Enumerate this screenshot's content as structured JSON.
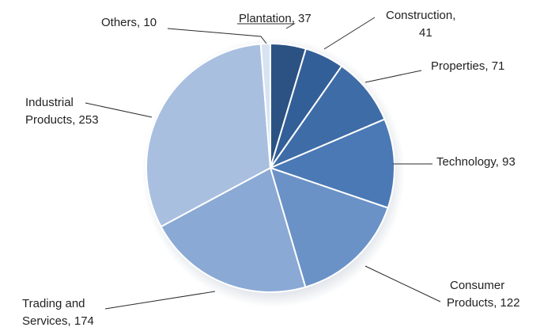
{
  "chart_data": {
    "type": "pie",
    "title": "",
    "categories": [
      "Plantation",
      "Construction",
      "Properties",
      "Technology",
      "Consumer Products",
      "Trading and Services",
      "Industrial Products",
      "Others"
    ],
    "values": [
      37,
      41,
      71,
      93,
      122,
      174,
      253,
      10
    ],
    "labels": [
      [
        "Plantation, 37"
      ],
      [
        "Construction,",
        "41"
      ],
      [
        "Properties, 71"
      ],
      [
        "Technology, 93"
      ],
      [
        "Consumer",
        "Products, 122"
      ],
      [
        "Trading and",
        "Services, 174"
      ],
      [
        "Industrial",
        "Products, 253"
      ],
      [
        "Others, 10"
      ]
    ],
    "colors": [
      "#2b5283",
      "#335f98",
      "#3e6ca7",
      "#4a79b5",
      "#6a92c7",
      "#8aa9d4",
      "#a9bfe0",
      "#d8e3f1"
    ],
    "legend": "none",
    "grid": false
  }
}
